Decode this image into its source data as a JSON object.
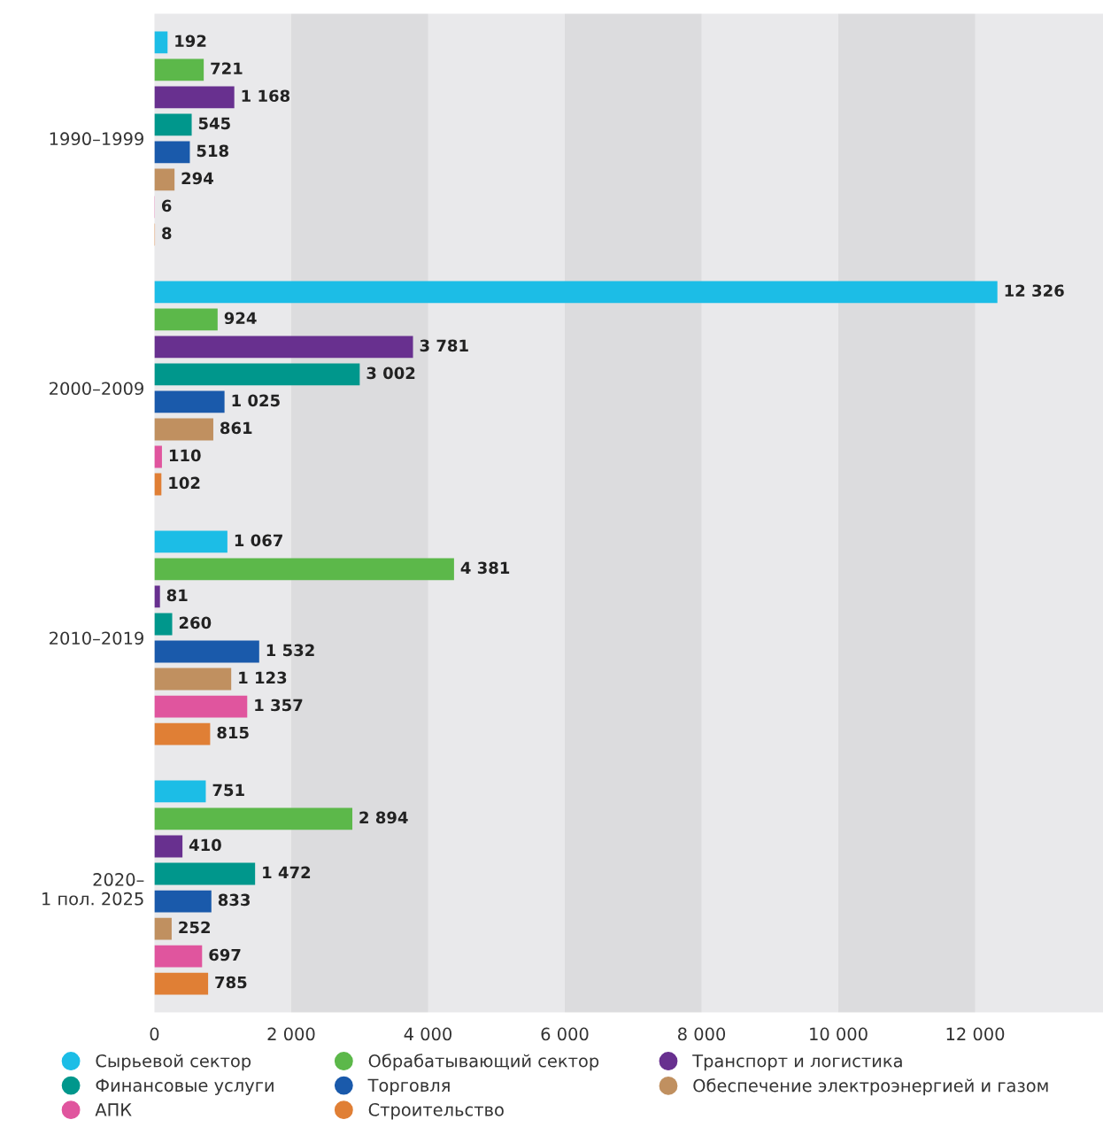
{
  "chart_data": {
    "type": "bar",
    "orientation": "horizontal",
    "categories": [
      "1990–1999",
      "2000–2009",
      "2010–2019",
      "2020–\n1 пол. 2025"
    ],
    "series": [
      {
        "name": "Сырьевой сектор",
        "color": "#1cbde6",
        "values": [
          192,
          12326,
          1067,
          751
        ],
        "value_labels": [
          "192",
          "12 326",
          "1 067",
          "751"
        ]
      },
      {
        "name": "Обрабатывающий сектор",
        "color": "#5cb84a",
        "values": [
          721,
          924,
          4381,
          2894
        ],
        "value_labels": [
          "721",
          "924",
          "4 381",
          "2 894"
        ]
      },
      {
        "name": "Транспорт и логистика",
        "color": "#68308f",
        "values": [
          1168,
          3781,
          81,
          410
        ],
        "value_labels": [
          "1 168",
          "3 781",
          "81",
          "410"
        ]
      },
      {
        "name": "Финансовые услуги",
        "color": "#00978c",
        "values": [
          545,
          3002,
          260,
          1472
        ],
        "value_labels": [
          "545",
          "3 002",
          "260",
          "1 472"
        ]
      },
      {
        "name": "Торговля",
        "color": "#1a5aab",
        "values": [
          518,
          1025,
          1532,
          833
        ],
        "value_labels": [
          "518",
          "1 025",
          "1 532",
          "833"
        ]
      },
      {
        "name": "Обеспечение электроэнергией и газом",
        "color": "#c09060",
        "values": [
          294,
          861,
          1123,
          252
        ],
        "value_labels": [
          "294",
          "861",
          "1 123",
          "252"
        ]
      },
      {
        "name": "АПК",
        "color": "#e0559e",
        "values": [
          6,
          110,
          1357,
          697
        ],
        "value_labels": [
          "6",
          "110",
          "1 357",
          "697"
        ]
      },
      {
        "name": "Строительство",
        "color": "#e07f35",
        "values": [
          8,
          102,
          815,
          785
        ],
        "value_labels": [
          "8",
          "102",
          "815",
          "785"
        ]
      }
    ],
    "xlim": [
      0,
      13870
    ],
    "xticks": [
      0,
      {
        "value": 2000,
        "label": "2 000"
      },
      {
        "value": 4000,
        "label": "4 000"
      },
      {
        "value": 6000,
        "label": "6 000"
      },
      {
        "value": 8000,
        "label": "8 000"
      },
      {
        "value": 10000,
        "label": "10 000"
      },
      {
        "value": 12000,
        "label": "12 000"
      }
    ],
    "bands": [
      {
        "axis": "x",
        "from": 2000,
        "to": 4000,
        "color": "#dcdcde"
      },
      {
        "axis": "x",
        "from": 6000,
        "to": 8000,
        "color": "#dcdcde"
      },
      {
        "axis": "x",
        "from": 10000,
        "to": 12000,
        "color": "#dcdcde"
      }
    ],
    "legend": "bottom",
    "marker": "circle"
  }
}
